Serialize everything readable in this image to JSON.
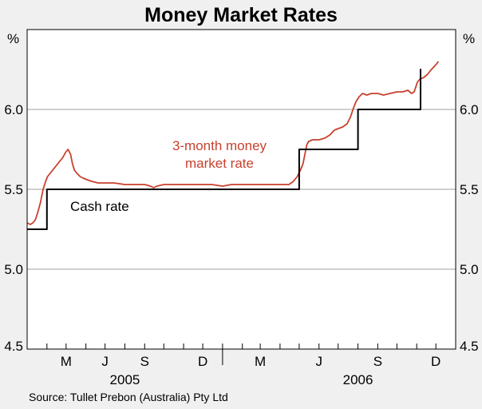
{
  "chart_data": {
    "type": "line",
    "title": "Money Market Rates",
    "unit_label": "%",
    "source": "Source: Tullet Prebon (Australia) Pty Ltd",
    "ylim": [
      4.5,
      6.5
    ],
    "yticks": [
      "6.0",
      "5.5",
      "5.0",
      "4.5"
    ],
    "xlim": [
      "2005-03-01",
      "2007-01-01"
    ],
    "x_ticks": [
      {
        "label": "M",
        "date": "2005-05-01"
      },
      {
        "label": "J",
        "date": "2005-07-01"
      },
      {
        "label": "S",
        "date": "2005-09-01"
      },
      {
        "label": "D",
        "date": "2005-12-01"
      },
      {
        "label": "M",
        "date": "2006-03-01"
      },
      {
        "label": "J",
        "date": "2006-06-01"
      },
      {
        "label": "S",
        "date": "2006-09-01"
      },
      {
        "label": "D",
        "date": "2006-12-01"
      }
    ],
    "years": [
      {
        "label": "2005",
        "date": "2005-08-01"
      },
      {
        "label": "2006",
        "date": "2006-08-01"
      }
    ],
    "grid": true,
    "annotations": [
      {
        "text": "3-month money",
        "color": "#c8412d"
      },
      {
        "text": "market rate",
        "color": "#c8412d"
      },
      {
        "text": "Cash rate",
        "color": "#000000"
      }
    ],
    "series": [
      {
        "name": "3-month money market rate",
        "color": "#c8412d",
        "points": [
          [
            "2005-03-01",
            5.29
          ],
          [
            "2005-03-06",
            5.28
          ],
          [
            "2005-03-10",
            5.29
          ],
          [
            "2005-03-14",
            5.31
          ],
          [
            "2005-03-18",
            5.36
          ],
          [
            "2005-03-22",
            5.42
          ],
          [
            "2005-03-26",
            5.5
          ],
          [
            "2005-03-30",
            5.55
          ],
          [
            "2005-04-02",
            5.58
          ],
          [
            "2005-04-06",
            5.6
          ],
          [
            "2005-04-10",
            5.62
          ],
          [
            "2005-04-14",
            5.64
          ],
          [
            "2005-04-18",
            5.66
          ],
          [
            "2005-04-22",
            5.68
          ],
          [
            "2005-04-26",
            5.7
          ],
          [
            "2005-04-30",
            5.73
          ],
          [
            "2005-05-04",
            5.75
          ],
          [
            "2005-05-08",
            5.72
          ],
          [
            "2005-05-11",
            5.66
          ],
          [
            "2005-05-14",
            5.62
          ],
          [
            "2005-05-18",
            5.6
          ],
          [
            "2005-05-23",
            5.58
          ],
          [
            "2005-05-28",
            5.57
          ],
          [
            "2005-06-03",
            5.56
          ],
          [
            "2005-06-10",
            5.55
          ],
          [
            "2005-06-20",
            5.54
          ],
          [
            "2005-07-01",
            5.54
          ],
          [
            "2005-07-15",
            5.54
          ],
          [
            "2005-08-01",
            5.53
          ],
          [
            "2005-08-15",
            5.53
          ],
          [
            "2005-09-01",
            5.53
          ],
          [
            "2005-09-10",
            5.52
          ],
          [
            "2005-09-15",
            5.51
          ],
          [
            "2005-09-20",
            5.52
          ],
          [
            "2005-10-01",
            5.53
          ],
          [
            "2005-10-15",
            5.53
          ],
          [
            "2005-11-01",
            5.53
          ],
          [
            "2005-11-15",
            5.53
          ],
          [
            "2005-12-01",
            5.53
          ],
          [
            "2005-12-15",
            5.53
          ],
          [
            "2006-01-01",
            5.52
          ],
          [
            "2006-01-15",
            5.53
          ],
          [
            "2006-02-01",
            5.53
          ],
          [
            "2006-02-15",
            5.53
          ],
          [
            "2006-03-01",
            5.53
          ],
          [
            "2006-03-15",
            5.53
          ],
          [
            "2006-04-01",
            5.53
          ],
          [
            "2006-04-15",
            5.53
          ],
          [
            "2006-04-22",
            5.55
          ],
          [
            "2006-04-28",
            5.58
          ],
          [
            "2006-05-03",
            5.62
          ],
          [
            "2006-05-07",
            5.66
          ],
          [
            "2006-05-10",
            5.72
          ],
          [
            "2006-05-13",
            5.78
          ],
          [
            "2006-05-16",
            5.8
          ],
          [
            "2006-05-22",
            5.81
          ],
          [
            "2006-06-01",
            5.81
          ],
          [
            "2006-06-10",
            5.82
          ],
          [
            "2006-06-18",
            5.84
          ],
          [
            "2006-06-25",
            5.87
          ],
          [
            "2006-07-01",
            5.88
          ],
          [
            "2006-07-08",
            5.89
          ],
          [
            "2006-07-15",
            5.91
          ],
          [
            "2006-07-20",
            5.95
          ],
          [
            "2006-07-25",
            6.01
          ],
          [
            "2006-07-29",
            6.05
          ],
          [
            "2006-08-03",
            6.08
          ],
          [
            "2006-08-08",
            6.1
          ],
          [
            "2006-08-15",
            6.09
          ],
          [
            "2006-08-22",
            6.1
          ],
          [
            "2006-09-01",
            6.1
          ],
          [
            "2006-09-10",
            6.09
          ],
          [
            "2006-09-20",
            6.1
          ],
          [
            "2006-10-01",
            6.11
          ],
          [
            "2006-10-10",
            6.11
          ],
          [
            "2006-10-18",
            6.12
          ],
          [
            "2006-10-24",
            6.1
          ],
          [
            "2006-10-28",
            6.11
          ],
          [
            "2006-11-02",
            6.17
          ],
          [
            "2006-11-06",
            6.19
          ],
          [
            "2006-11-12",
            6.2
          ],
          [
            "2006-11-18",
            6.22
          ],
          [
            "2006-11-24",
            6.25
          ],
          [
            "2006-12-01",
            6.28
          ],
          [
            "2006-12-05",
            6.3
          ]
        ]
      },
      {
        "name": "Cash rate",
        "color": "#000000",
        "step": true,
        "points": [
          [
            "2005-03-01",
            5.25
          ],
          [
            "2005-04-01",
            5.25
          ],
          [
            "2005-04-01",
            5.5
          ],
          [
            "2006-05-01",
            5.5
          ],
          [
            "2006-05-01",
            5.75
          ],
          [
            "2006-08-01",
            5.75
          ],
          [
            "2006-08-01",
            6.0
          ],
          [
            "2006-11-07",
            6.0
          ],
          [
            "2006-11-07",
            6.25
          ],
          [
            "2006-11-08",
            6.25
          ]
        ]
      }
    ]
  }
}
